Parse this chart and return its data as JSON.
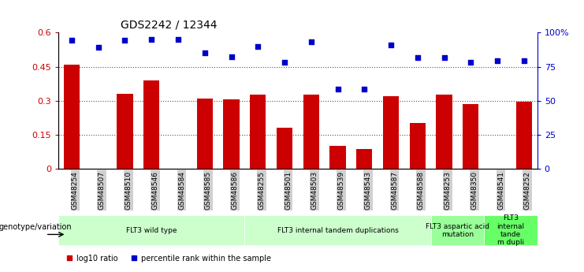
{
  "title": "GDS2242 / 12344",
  "samples": [
    "GSM48254",
    "GSM48507",
    "GSM48510",
    "GSM48546",
    "GSM48584",
    "GSM48585",
    "GSM48586",
    "GSM48255",
    "GSM48501",
    "GSM48503",
    "GSM48539",
    "GSM48543",
    "GSM48587",
    "GSM48588",
    "GSM48253",
    "GSM48350",
    "GSM48541",
    "GSM48252"
  ],
  "bar_values": [
    0.46,
    0.0,
    0.33,
    0.39,
    0.0,
    0.31,
    0.305,
    0.325,
    0.18,
    0.325,
    0.1,
    0.085,
    0.32,
    0.2,
    0.325,
    0.285,
    0.0,
    0.295
  ],
  "scatter_values": [
    0.565,
    0.535,
    0.565,
    0.57,
    0.57,
    0.51,
    0.495,
    0.54,
    0.47,
    0.56,
    0.35,
    0.35,
    0.545,
    0.49,
    0.49,
    0.47,
    0.475,
    0.475
  ],
  "bar_color": "#cc0000",
  "scatter_color": "#0000cc",
  "ylim_left": [
    0,
    0.6
  ],
  "ylim_right": [
    0,
    100
  ],
  "yticks_left": [
    0,
    0.15,
    0.3,
    0.45,
    0.6
  ],
  "ytick_labels_left": [
    "0",
    "0.15",
    "0.3",
    "0.45",
    "0.6"
  ],
  "yticks_right": [
    0,
    25,
    50,
    75,
    100
  ],
  "ytick_labels_right": [
    "0",
    "25",
    "50",
    "75",
    "100%"
  ],
  "groups": [
    {
      "label": "FLT3 wild type",
      "start": 0,
      "end": 7,
      "color": "#ccffcc"
    },
    {
      "label": "FLT3 internal tandem duplications",
      "start": 7,
      "end": 14,
      "color": "#ccffcc"
    },
    {
      "label": "FLT3 aspartic acid\nmutation",
      "start": 14,
      "end": 16,
      "color": "#99ff99"
    },
    {
      "label": "FLT3\ninternal\ntande\nm dupli",
      "start": 16,
      "end": 18,
      "color": "#66ff66"
    }
  ],
  "legend_bar_label": "log10 ratio",
  "legend_scatter_label": "percentile rank within the sample",
  "genotype_label": "genotype/variation",
  "xlabel_color": "#333333",
  "tick_bg_color": "#d0d0d0",
  "dotted_line_color": "#555555"
}
